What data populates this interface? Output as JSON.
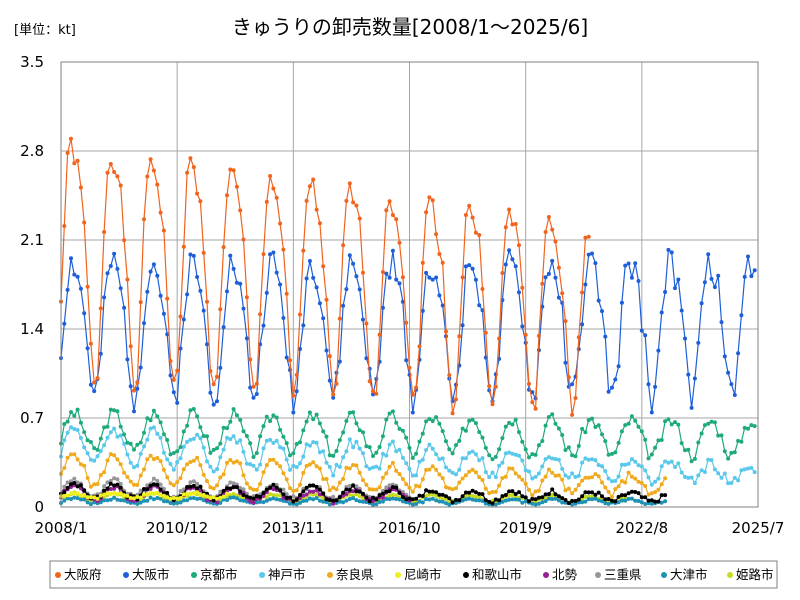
{
  "chart_data": {
    "type": "line",
    "title": "きゅうりの卸売数量[2008/1～2025/6]",
    "unit_label": "[単位：kt]",
    "xlabel": "",
    "ylabel": "",
    "ylim": [
      0,
      3.5
    ],
    "y_ticks": [
      "0",
      "0.7",
      "1.4",
      "2.1",
      "2.8",
      "3.5"
    ],
    "y_tick_values": [
      0,
      0.7,
      1.4,
      2.1,
      2.8,
      3.5
    ],
    "x_ticks": [
      "2008/1",
      "2010/12",
      "2013/11",
      "2016/10",
      "2019/9",
      "2022/8",
      "2025/7"
    ],
    "x_tick_index": [
      0,
      35,
      70,
      105,
      140,
      175,
      210
    ],
    "x_range": [
      0,
      210
    ],
    "grid": true,
    "legend_position": "bottom",
    "series": [
      {
        "name": "大阪府",
        "color": "#f0641e",
        "base": 2.05,
        "amp": 0.92,
        "skew": 0.22,
        "noise": 0.1,
        "trend": -0.03,
        "start": 0,
        "end": 159,
        "seed": 1
      },
      {
        "name": "大阪市",
        "color": "#1e5fd8",
        "base": 1.45,
        "amp": 0.52,
        "skew": 0.15,
        "noise": 0.12,
        "trend": -0.0,
        "start": 0,
        "end": 209,
        "seed": 2
      },
      {
        "name": "京都市",
        "color": "#1eaa7d",
        "base": 0.6,
        "amp": 0.15,
        "skew": 0.05,
        "noise": 0.05,
        "trend": -0.01,
        "start": 0,
        "end": 209,
        "seed": 3
      },
      {
        "name": "神戸市",
        "color": "#5ac8eb",
        "base": 0.5,
        "amp": 0.14,
        "skew": 0.05,
        "noise": 0.04,
        "trend": -0.05,
        "start": 0,
        "end": 209,
        "seed": 4
      },
      {
        "name": "奈良県",
        "color": "#f0aa1e",
        "base": 0.3,
        "amp": 0.13,
        "skew": 0.03,
        "noise": 0.03,
        "trend": -0.05,
        "start": 0,
        "end": 182,
        "seed": 5
      },
      {
        "name": "尼崎市",
        "color": "#f0f01e",
        "base": 0.09,
        "amp": 0.02,
        "skew": 0.0,
        "noise": 0.01,
        "trend": 0.0,
        "start": 0,
        "end": 50,
        "seed": 6
      },
      {
        "name": "和歌山市",
        "color": "#000000",
        "base": 0.13,
        "amp": 0.06,
        "skew": 0.0,
        "noise": 0.02,
        "trend": -0.05,
        "start": 0,
        "end": 182,
        "seed": 7
      },
      {
        "name": "北勢",
        "color": "#961e96",
        "base": 0.11,
        "amp": 0.06,
        "skew": 0.0,
        "noise": 0.02,
        "trend": -0.05,
        "start": 0,
        "end": 105,
        "seed": 8
      },
      {
        "name": "三重県",
        "color": "#96969b",
        "base": 0.15,
        "amp": 0.07,
        "skew": 0.0,
        "noise": 0.02,
        "trend": -0.05,
        "start": 0,
        "end": 105,
        "seed": 9
      },
      {
        "name": "大津市",
        "color": "#1e91b4",
        "base": 0.05,
        "amp": 0.02,
        "skew": 0.0,
        "noise": 0.01,
        "trend": -0.02,
        "start": 0,
        "end": 182,
        "seed": 10
      },
      {
        "name": "姫路市",
        "color": "#c8dc1e",
        "base": 0.08,
        "amp": 0.03,
        "skew": 0.0,
        "noise": 0.01,
        "trend": -0.03,
        "start": 0,
        "end": 170,
        "seed": 11
      }
    ]
  }
}
